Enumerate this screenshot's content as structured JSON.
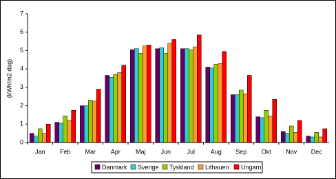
{
  "chart_data": {
    "type": "bar",
    "y_label": "(kWh/m2 dag)",
    "categories": [
      "Jan",
      "Feb",
      "Mar",
      "Apr",
      "Maj",
      "Jun",
      "Jul",
      "Aug",
      "Sep",
      "Okt",
      "Nov",
      "Dec"
    ],
    "series": [
      {
        "name": "Danmark",
        "color": "#660066",
        "values": [
          0.5,
          1.1,
          2.0,
          3.65,
          5.05,
          5.1,
          5.1,
          4.1,
          2.6,
          1.4,
          0.6,
          0.35
        ]
      },
      {
        "name": "Sverige",
        "color": "#33cccc",
        "values": [
          0.35,
          1.05,
          2.0,
          3.55,
          5.1,
          5.15,
          5.1,
          4.05,
          2.6,
          1.35,
          0.5,
          0.3
        ]
      },
      {
        "name": "Tyskland",
        "color": "#99cc00",
        "values": [
          0.75,
          1.45,
          2.3,
          3.7,
          4.85,
          4.85,
          5.05,
          4.25,
          2.85,
          1.75,
          0.9,
          0.55
        ]
      },
      {
        "name": "Lithauen",
        "color": "#ff9933",
        "values": [
          0.5,
          1.2,
          2.25,
          3.8,
          5.25,
          5.4,
          5.2,
          4.3,
          2.65,
          1.45,
          0.55,
          0.3
        ]
      },
      {
        "name": "Ungarn",
        "color": "#ff0000",
        "values": [
          1.0,
          1.75,
          2.9,
          4.2,
          5.3,
          5.6,
          5.85,
          4.95,
          3.65,
          2.35,
          1.2,
          0.75
        ]
      }
    ],
    "ylim": [
      0,
      7
    ],
    "yticks": [
      0,
      1,
      2,
      3,
      4,
      5,
      6,
      7
    ],
    "grid": false,
    "legend": "bottom"
  }
}
